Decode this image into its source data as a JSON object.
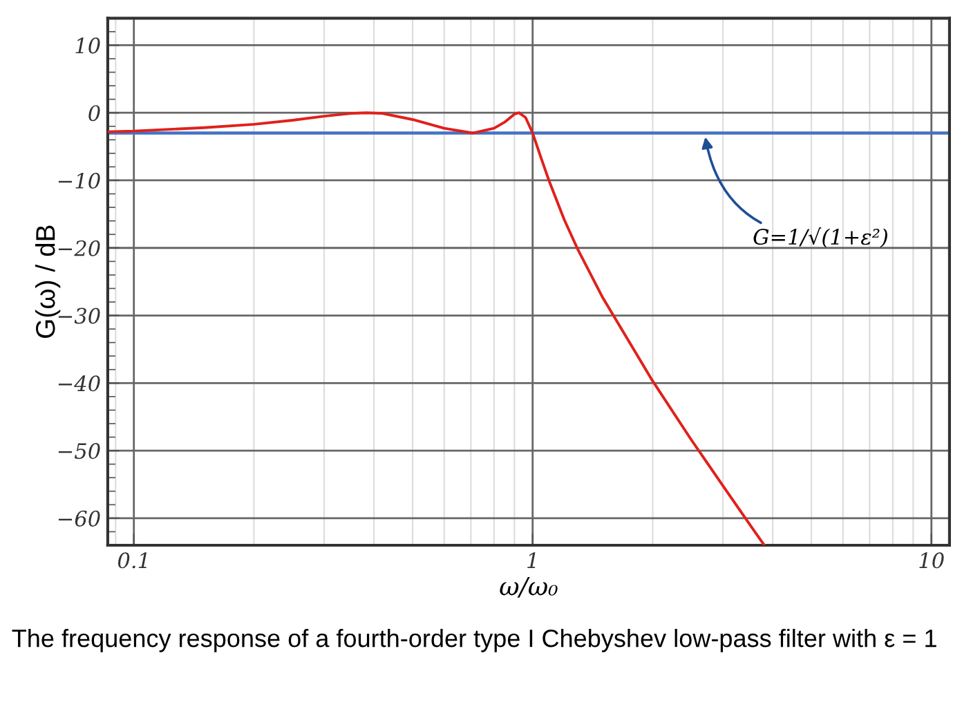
{
  "chart_data": {
    "type": "line",
    "log": "x",
    "grid": true,
    "marker": "none",
    "line_style": "solid",
    "xlabel": "ω/ω₀",
    "ylabel": "G(ω) / dB",
    "xlim": [
      0.086,
      11.1
    ],
    "ylim": [
      -64,
      14
    ],
    "xticks": [
      {
        "value": 0.1,
        "label": "0.1"
      },
      1,
      10
    ],
    "yticks": [
      10,
      0,
      -10,
      -20,
      -30,
      -40,
      -50,
      -60
    ],
    "series": [
      {
        "color": "#e0201b",
        "x": [
          0.086,
          0.1,
          0.15,
          0.2,
          0.25,
          0.3,
          0.35,
          0.383,
          0.42,
          0.5,
          0.6,
          0.707,
          0.8,
          0.85,
          0.9,
          0.924,
          0.96,
          1,
          1.05,
          1.1,
          1.2,
          1.3,
          1.5,
          2,
          2.5,
          3,
          3.5,
          3.8
        ],
        "values": [
          -2.8,
          -2.7,
          -2.2,
          -1.7,
          -1.1,
          -0.5,
          -0.1,
          0,
          -0.1,
          -1,
          -2.3,
          -3,
          -2.3,
          -1.4,
          -0.2,
          0,
          -0.7,
          -3,
          -6.7,
          -10.1,
          -15.8,
          -20.3,
          -27.4,
          -39.7,
          -48.4,
          -55.2,
          -60.9,
          -63.9
        ]
      }
    ],
    "ref_lines": [
      {
        "axis": "y",
        "value": -3,
        "color": "#4472c4"
      }
    ],
    "annotations": [
      {
        "text": "G=1/√(1+ε²)",
        "x": 2.7,
        "y": -3
      },
      "The frequency response of a fourth-order type I Chebyshev low-pass filter with ε = 1"
    ]
  }
}
